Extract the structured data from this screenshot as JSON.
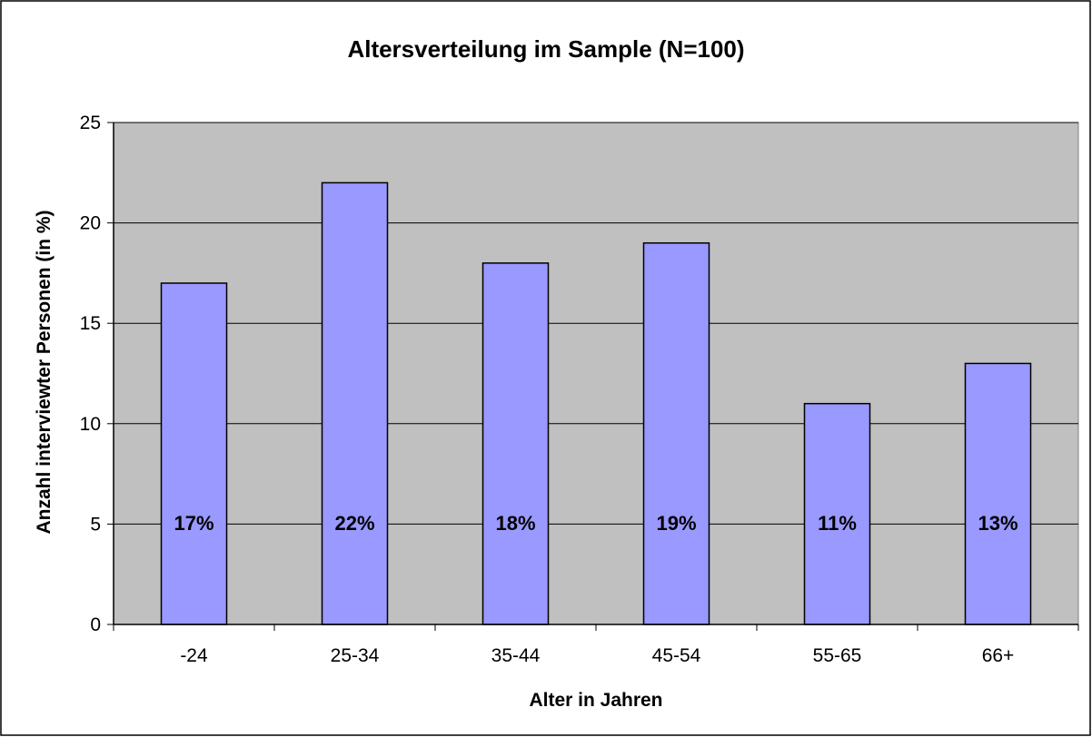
{
  "chart_data": {
    "type": "bar",
    "title": "Altersverteilung im Sample (N=100)",
    "xlabel": "Alter in Jahren",
    "ylabel": "Anzahl interviewter Personen (in %)",
    "categories": [
      "-24",
      "25-34",
      "35-44",
      "45-54",
      "55-65",
      "66+"
    ],
    "values": [
      17,
      22,
      18,
      19,
      11,
      13
    ],
    "data_labels": [
      "17%",
      "22%",
      "18%",
      "19%",
      "11%",
      "13%"
    ],
    "ylim": [
      0,
      25
    ],
    "yticks": [
      "0",
      "5",
      "10",
      "15",
      "20",
      "25"
    ],
    "grid": true,
    "legend": "none",
    "colors": {
      "bar_fill": "#9999ff",
      "plot_background": "#c0c0c0",
      "gridline": "#000000",
      "border": "#000000"
    }
  }
}
